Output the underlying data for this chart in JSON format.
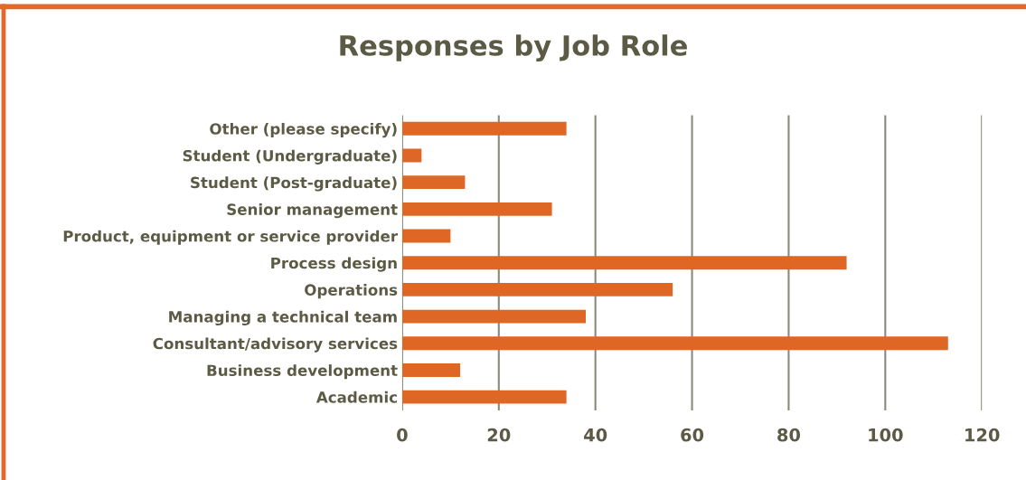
{
  "chart_data": {
    "type": "bar",
    "orientation": "horizontal",
    "title": "Responses by Job Role",
    "categories": [
      "Other (please specify)",
      "Student (Undergraduate)",
      "Student (Post-graduate)",
      "Senior management",
      "Product, equipment or service provider",
      "Process design",
      "Operations",
      "Managing a technical team",
      "Consultant/advisory services",
      "Business development",
      "Academic"
    ],
    "values": [
      34,
      4,
      13,
      31,
      10,
      92,
      56,
      38,
      113,
      12,
      34
    ],
    "color": "#de6726",
    "xlim": [
      0,
      120
    ],
    "xticks": [
      0,
      20,
      40,
      60,
      80,
      100,
      120
    ],
    "grid": "x",
    "legend": false
  }
}
